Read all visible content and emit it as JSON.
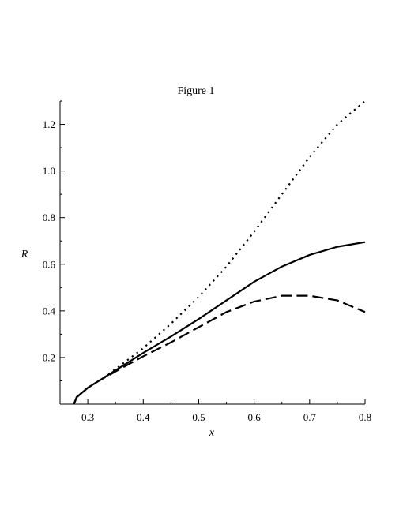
{
  "chart_data": {
    "type": "line",
    "title": "Figure 1",
    "xlabel": "x",
    "ylabel": "R",
    "xlim": [
      0.25,
      0.8
    ],
    "ylim": [
      0,
      1.3
    ],
    "x_ticks": [
      0.3,
      0.4,
      0.5,
      0.6,
      0.7,
      0.8
    ],
    "x_tick_labels": [
      "0.3",
      "0.4",
      "0.5",
      "0.6",
      "0.7",
      "0.8"
    ],
    "x_minor_ticks": [
      0.25,
      0.35,
      0.45,
      0.55,
      0.65,
      0.75
    ],
    "y_ticks": [
      0.2,
      0.4,
      0.6,
      0.8,
      1.0,
      1.2
    ],
    "y_tick_labels": [
      "0.2",
      "0.4",
      "0.6",
      "0.8",
      "1.0",
      "1.2"
    ],
    "y_minor_ticks": [
      0.1,
      0.3,
      0.5,
      0.7,
      0.9,
      1.1,
      1.3
    ],
    "grid": false,
    "legend": "none",
    "series": [
      {
        "style": "solid",
        "color": "#000000",
        "x": [
          0.275,
          0.28,
          0.29,
          0.3,
          0.32,
          0.35,
          0.4,
          0.45,
          0.5,
          0.55,
          0.6,
          0.65,
          0.7,
          0.75,
          0.8
        ],
        "y": [
          0.0,
          0.03,
          0.05,
          0.07,
          0.1,
          0.145,
          0.22,
          0.29,
          0.365,
          0.445,
          0.525,
          0.59,
          0.64,
          0.675,
          0.695
        ]
      },
      {
        "style": "dashed",
        "color": "#000000",
        "x": [
          0.275,
          0.28,
          0.29,
          0.3,
          0.32,
          0.35,
          0.4,
          0.45,
          0.5,
          0.55,
          0.6,
          0.65,
          0.7,
          0.75,
          0.8
        ],
        "y": [
          0.0,
          0.03,
          0.05,
          0.07,
          0.1,
          0.14,
          0.205,
          0.265,
          0.33,
          0.395,
          0.44,
          0.465,
          0.465,
          0.445,
          0.395
        ]
      },
      {
        "style": "dotted",
        "color": "#000000",
        "x": [
          0.275,
          0.28,
          0.29,
          0.3,
          0.32,
          0.35,
          0.4,
          0.45,
          0.5,
          0.55,
          0.6,
          0.65,
          0.7,
          0.75,
          0.8
        ],
        "y": [
          0.0,
          0.03,
          0.05,
          0.07,
          0.1,
          0.15,
          0.24,
          0.345,
          0.46,
          0.59,
          0.74,
          0.9,
          1.06,
          1.2,
          1.3
        ]
      }
    ]
  }
}
